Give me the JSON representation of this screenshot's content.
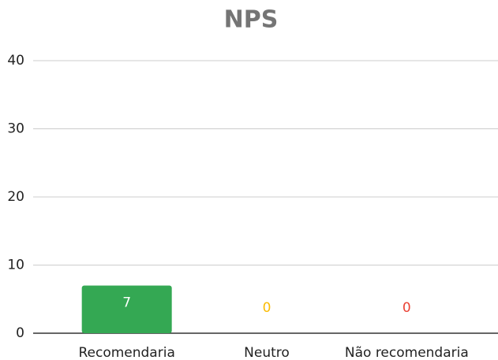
{
  "chart_data": {
    "type": "bar",
    "title": "NPS",
    "categories": [
      "Recomendaria",
      "Neutro",
      "Não recomendaria"
    ],
    "values": [
      7,
      0,
      0
    ],
    "colors": [
      "#34a853",
      "#fbbc04",
      "#ea4335"
    ],
    "ylim": [
      0,
      40
    ],
    "yticks": [
      0,
      10,
      20,
      30,
      40
    ],
    "grid": true
  }
}
